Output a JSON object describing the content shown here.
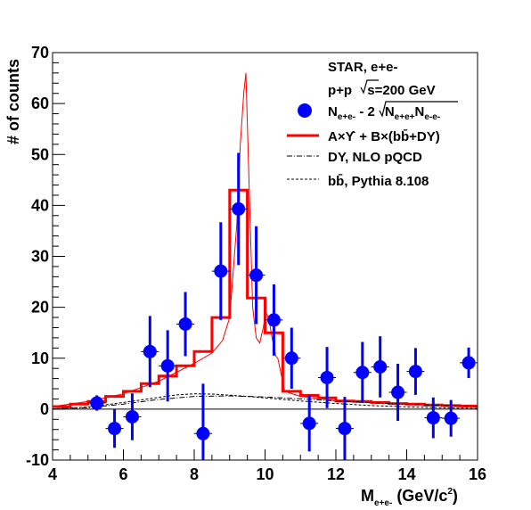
{
  "chart_data": {
    "type": "scatter",
    "title": "",
    "xlabel": "M",
    "xlabel_subscript": "e+e-",
    "xlabel_units": "(GeV/c",
    "xlabel_units_sup": "2",
    "xlabel_units_close": ")",
    "ylabel": "# of counts",
    "xlim": [
      4,
      16
    ],
    "ylim": [
      -10,
      70
    ],
    "x_ticks": [
      4,
      6,
      8,
      10,
      12,
      14,
      16
    ],
    "y_ticks": [
      -10,
      0,
      10,
      20,
      30,
      40,
      50,
      60,
      70
    ],
    "grid": false,
    "legend_position": "top-right",
    "legend": {
      "header_1": "STAR, e+e-",
      "header_2_left": "p+p ",
      "header_2_sqrt": "s",
      "header_2_right": "=200 GeV",
      "points_label_main": "N",
      "points_label_sub1": "e+e-",
      "points_label_mid": " - 2",
      "points_label_sqrt_a": "N",
      "points_label_sqrt_a_sub": "e+e+",
      "points_label_sqrt_b": "N",
      "points_label_sqrt_b_sub": "e-e-",
      "fit_label": "A×ϒ + B×(bb̄+DY)",
      "dy_label": "DY, NLO pQCD",
      "bb_label": "bb̄, Pythia 8.108"
    },
    "series": [
      {
        "name": "N_{e+e-} - 2√(N_{e+e+}N_{e-e-})",
        "kind": "points",
        "color": "#0000ff",
        "x": [
          5.25,
          5.75,
          6.25,
          6.75,
          7.25,
          7.75,
          8.25,
          8.75,
          9.25,
          9.75,
          10.25,
          10.75,
          11.25,
          11.75,
          12.25,
          12.75,
          13.25,
          13.75,
          14.25,
          14.75,
          15.25,
          15.75
        ],
        "y": [
          1.2,
          -3.8,
          -1.5,
          11.3,
          8.5,
          16.7,
          -4.8,
          27.1,
          39.3,
          26.3,
          17.5,
          10.0,
          -2.8,
          6.2,
          -3.8,
          7.2,
          8.3,
          3.3,
          7.4,
          -1.7,
          -1.8,
          9.1
        ],
        "y_err": [
          1.5,
          3.8,
          4.6,
          7.0,
          7.0,
          6.3,
          9.8,
          9.6,
          11.0,
          9.6,
          7.0,
          6.0,
          5.5,
          6.0,
          6.2,
          6.0,
          6.0,
          5.6,
          4.6,
          4.0,
          3.6,
          3.0
        ]
      },
      {
        "name": "A×ϒ + B×(bb̄+DY)",
        "kind": "histogram",
        "color": "#ff0000",
        "edges": [
          4.0,
          4.5,
          5.0,
          5.5,
          6.0,
          6.5,
          7.0,
          7.5,
          8.0,
          8.5,
          9.0,
          9.5,
          10.0,
          10.5,
          11.0,
          11.5,
          12.0,
          12.5,
          13.0,
          13.5,
          14.0,
          14.5,
          15.0,
          15.5,
          16.0
        ],
        "values": [
          0.5,
          1.0,
          1.5,
          2.5,
          3.5,
          5.0,
          6.5,
          8.5,
          11.3,
          18.0,
          43.0,
          21.8,
          15.0,
          3.5,
          2.7,
          2.2,
          1.6,
          1.5,
          1.3,
          1.1,
          1.0,
          0.8,
          0.7,
          0.6
        ]
      },
      {
        "name": "fit curve (fine)",
        "kind": "line",
        "color": "#ff0000",
        "x": [
          4.0,
          5.0,
          6.0,
          7.0,
          8.0,
          8.5,
          8.8,
          9.0,
          9.2,
          9.3,
          9.4,
          9.46,
          9.55,
          9.65,
          9.75,
          9.85,
          9.95,
          10.02,
          10.1,
          10.2,
          10.3,
          10.36,
          10.45,
          10.55,
          11.0,
          12.0,
          14.0,
          16.0
        ],
        "y": [
          0.5,
          1.5,
          3.0,
          5.5,
          9.0,
          11.0,
          13.5,
          18.0,
          36.0,
          52.0,
          62.0,
          66.0,
          44.0,
          20.0,
          14.0,
          13.0,
          16.0,
          19.0,
          18.0,
          14.0,
          10.5,
          10.0,
          7.0,
          3.5,
          2.5,
          1.7,
          1.1,
          0.6
        ]
      },
      {
        "name": "DY, NLO pQCD",
        "kind": "line",
        "style": "dashdot",
        "color": "#000000",
        "x": [
          4.0,
          5.0,
          6.0,
          7.0,
          8.0,
          9.0,
          10.0,
          11.0,
          12.0,
          13.0,
          14.0,
          15.0,
          16.0
        ],
        "y": [
          0.05,
          0.3,
          1.0,
          1.9,
          2.5,
          2.6,
          2.4,
          2.0,
          1.6,
          1.25,
          0.95,
          0.7,
          0.5
        ]
      },
      {
        "name": "bb̄, Pythia 8.108",
        "kind": "line",
        "style": "dashed",
        "color": "#000000",
        "x": [
          4.0,
          5.0,
          6.0,
          7.0,
          7.5,
          8.0,
          8.5,
          9.0,
          9.5,
          10.0,
          11.0,
          12.0,
          13.0,
          14.0,
          15.0,
          16.0
        ],
        "y": [
          0.05,
          0.4,
          1.3,
          2.3,
          2.8,
          3.0,
          2.95,
          2.75,
          2.5,
          2.2,
          1.6,
          1.1,
          0.7,
          0.45,
          0.25,
          0.15
        ]
      }
    ]
  }
}
